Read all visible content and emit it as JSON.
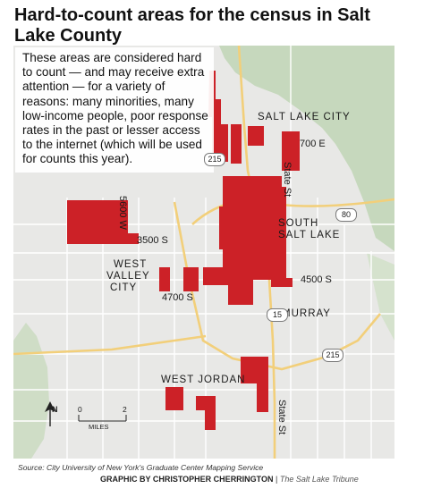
{
  "title": "Hard-to-count areas for the census in Salt Lake County",
  "description": "These areas are considered hard to count — and may receive extra attention — for a variety of reasons: many minorities, many low-income people, poor response rates in the past or lesser access to the internet (which will be used for counts this year).",
  "places": {
    "salt_lake_city": "SALT LAKE CITY",
    "south_salt_lake_1": "SOUTH",
    "south_salt_lake_2": "SALT LAKE",
    "west_valley_1": "WEST",
    "west_valley_2": "VALLEY",
    "west_valley_3": "CITY",
    "murray": "MURRAY",
    "west_jordan": "WEST JORDAN"
  },
  "streets": {
    "e700": "700 E",
    "state_st_north": "State St",
    "state_st_south": "State St",
    "w5600": "5600 W",
    "s3500": "3500 S",
    "s4500": "4500 S",
    "s4700": "4700 S"
  },
  "highways": {
    "i215_north": "215",
    "i80": "80",
    "i15": "15",
    "i215_south": "215"
  },
  "scale": {
    "zero": "0",
    "two": "2",
    "unit": "MILES",
    "north": "N"
  },
  "source": "Source: City University of New York's Graduate Center Mapping Service",
  "credit": {
    "prefix": "GRAPHIC BY CHRISTOPHER CHERRINGTON",
    "separator": "|",
    "outlet": "The Salt Lake Tribune"
  },
  "colors": {
    "hard_to_count": "#cc2127",
    "land": "#e8e8e6",
    "mountains": "#c6d8bd",
    "roads": "#ffffff",
    "highway": "#f2cf7a"
  }
}
